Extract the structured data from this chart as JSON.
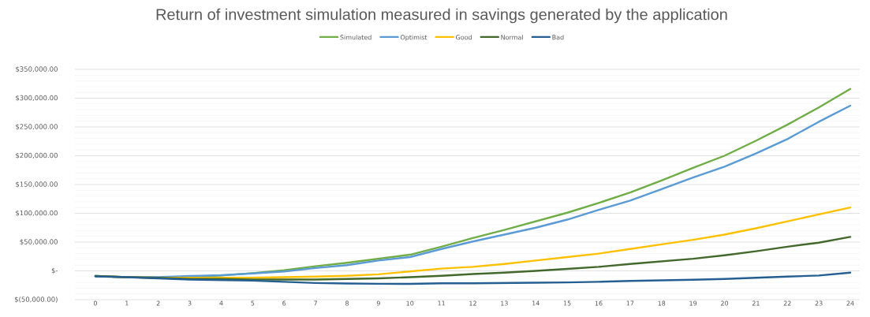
{
  "chart_data": {
    "type": "line",
    "title": "Return of investment simulation measured in savings generated by the application",
    "categories": [
      "0",
      "1",
      "2",
      "3",
      "4",
      "5",
      "6",
      "7",
      "8",
      "9",
      "10",
      "11",
      "12",
      "13",
      "14",
      "15",
      "16",
      "17",
      "18",
      "19",
      "20",
      "21",
      "22",
      "23",
      "24"
    ],
    "series": [
      {
        "name": "Simulated",
        "color": "#70ad47",
        "values": [
          -9000,
          -11000,
          -12000,
          -11000,
          -8000,
          -4000,
          1000,
          8000,
          14000,
          21000,
          28000,
          42000,
          57000,
          71000,
          86000,
          101000,
          118000,
          136000,
          157000,
          179000,
          200000,
          226000,
          254000,
          284000,
          316000
        ]
      },
      {
        "name": "Optimist",
        "color": "#5b9bd5",
        "values": [
          -9000,
          -11000,
          -11000,
          -9000,
          -7500,
          -4500,
          -1000,
          5000,
          10000,
          18000,
          24000,
          38000,
          51000,
          63000,
          75000,
          89000,
          106000,
          122000,
          142000,
          162000,
          181000,
          204000,
          229000,
          259000,
          287000
        ]
      },
      {
        "name": "Good",
        "color": "#ffc000",
        "values": [
          -9000,
          -11000,
          -12000,
          -12000,
          -12000,
          -12000,
          -11000,
          -10000,
          -8500,
          -6000,
          -1000,
          4000,
          7000,
          12000,
          18000,
          24000,
          30000,
          38000,
          46000,
          54000,
          63000,
          74000,
          86000,
          98000,
          110000
        ]
      },
      {
        "name": "Normal",
        "color": "#43682b",
        "values": [
          -9000,
          -11000,
          -12000,
          -14000,
          -14000,
          -15000,
          -15000,
          -15000,
          -14000,
          -13000,
          -11000,
          -8500,
          -5500,
          -3000,
          0,
          3500,
          7000,
          12000,
          16500,
          21000,
          27000,
          34000,
          42000,
          49000,
          59000
        ]
      },
      {
        "name": "Bad",
        "color": "#255e91",
        "values": [
          -9500,
          -11000,
          -13000,
          -15000,
          -16000,
          -17000,
          -19000,
          -21000,
          -22000,
          -22500,
          -22500,
          -21500,
          -21500,
          -21000,
          -20500,
          -20000,
          -19000,
          -17500,
          -16500,
          -15500,
          -14000,
          -12000,
          -10000,
          -8000,
          -3000
        ]
      }
    ],
    "ylim": [
      -50000,
      350000
    ],
    "yticks": [
      {
        "value": -50000,
        "label": "$(50,000.00)"
      },
      {
        "value": 0,
        "label": "$-"
      },
      {
        "value": 50000,
        "label": "$50,000.00"
      },
      {
        "value": 100000,
        "label": "$100,000.00"
      },
      {
        "value": 150000,
        "label": "$150,000.00"
      },
      {
        "value": 200000,
        "label": "$200,000.00"
      },
      {
        "value": 250000,
        "label": "$250,000.00"
      },
      {
        "value": 300000,
        "label": "$300,000.00"
      },
      {
        "value": 350000,
        "label": "$350,000.00"
      }
    ],
    "grid": "y",
    "legend": "top",
    "marker": "none",
    "line_style": "solid"
  }
}
